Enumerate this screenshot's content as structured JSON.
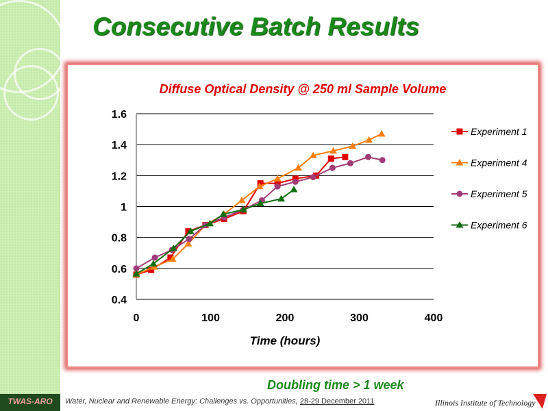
{
  "slide": {
    "title": "Consecutive Batch Results",
    "note": "Doubling time > 1 week",
    "badge": "TWAS-ARO",
    "footer_text": "Water, Nuclear and Renewable Energy: Challenges vs. Opportunities,",
    "footer_date": "28-29 December 2011",
    "institution": "Illinois Institute of Technology"
  },
  "chart_data": {
    "type": "line",
    "title": "Diffuse Optical Density @ 250 ml Sample Volume",
    "xlabel": "Time (hours)",
    "ylabel": "",
    "xlim": [
      0,
      400
    ],
    "ylim": [
      0.4,
      1.6
    ],
    "xticks": [
      "0",
      "100",
      "200",
      "300",
      "400"
    ],
    "yticks": [
      "0.4",
      "0.6",
      "0.8",
      "1",
      "1.2",
      "1.4",
      "1.6"
    ],
    "grid": "horizontal",
    "legend": "right",
    "series": [
      {
        "name": "Experiment 1",
        "color": "#e00000",
        "marker": "square",
        "x": [
          0,
          20,
          46,
          70,
          93,
          118,
          144,
          167,
          190,
          214,
          242,
          262,
          281
        ],
        "y": [
          0.56,
          0.59,
          0.67,
          0.84,
          0.88,
          0.92,
          0.97,
          1.15,
          1.15,
          1.18,
          1.2,
          1.31,
          1.32
        ]
      },
      {
        "name": "Experiment 4",
        "color": "#ff7f0e",
        "marker": "triangle",
        "x": [
          0,
          24,
          49,
          70,
          93,
          118,
          142,
          166,
          190,
          218,
          238,
          265,
          291,
          313,
          330
        ],
        "y": [
          0.56,
          0.61,
          0.66,
          0.76,
          0.88,
          0.95,
          1.04,
          1.13,
          1.18,
          1.25,
          1.33,
          1.36,
          1.39,
          1.43,
          1.47
        ]
      },
      {
        "name": "Experiment 5",
        "color": "#a03c78",
        "marker": "circle",
        "x": [
          0,
          25,
          48,
          71,
          93,
          118,
          144,
          169,
          190,
          214,
          238,
          264,
          288,
          312,
          331
        ],
        "y": [
          0.6,
          0.67,
          0.72,
          0.79,
          0.88,
          0.93,
          0.98,
          1.04,
          1.13,
          1.16,
          1.19,
          1.25,
          1.28,
          1.32,
          1.3
        ]
      },
      {
        "name": "Experiment 6",
        "color": "#0f6e0f",
        "marker": "triangle",
        "x": [
          0,
          23,
          50,
          73,
          99,
          117,
          144,
          167,
          195,
          212
        ],
        "y": [
          0.565,
          0.63,
          0.73,
          0.84,
          0.89,
          0.95,
          0.98,
          1.02,
          1.05,
          1.11
        ]
      }
    ]
  }
}
